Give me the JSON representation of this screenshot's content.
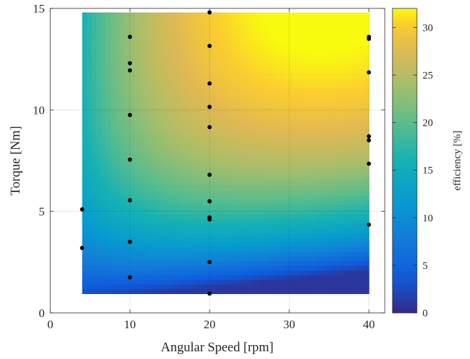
{
  "chart_data": {
    "type": "heatmap",
    "xlabel": "Angular Speed [rpm]",
    "ylabel": "Torque [Nm]",
    "colorbar_label": "efficiency [%]",
    "colormap": "parula",
    "xlim": [
      0,
      42
    ],
    "ylim": [
      0,
      15
    ],
    "x_ticks": [
      0,
      10,
      20,
      30,
      40
    ],
    "y_ticks": [
      0,
      5,
      10,
      15
    ],
    "colorbar_lim": [
      0,
      32
    ],
    "colorbar_ticks": [
      0,
      5,
      10,
      15,
      20,
      25,
      30
    ],
    "surface_extent": {
      "x": [
        4,
        40
      ],
      "y": [
        0.95,
        14.8
      ]
    },
    "peak_efficiency_location": {
      "x": 28,
      "y": 13.5,
      "value": 32
    },
    "grid": true,
    "points": [
      {
        "x": 4,
        "y": 5.1
      },
      {
        "x": 4,
        "y": 3.2
      },
      {
        "x": 10,
        "y": 13.6
      },
      {
        "x": 10,
        "y": 12.3
      },
      {
        "x": 10,
        "y": 11.95
      },
      {
        "x": 10,
        "y": 9.75
      },
      {
        "x": 10,
        "y": 7.55
      },
      {
        "x": 10,
        "y": 5.55
      },
      {
        "x": 10,
        "y": 3.5
      },
      {
        "x": 10,
        "y": 1.75
      },
      {
        "x": 20,
        "y": 14.8
      },
      {
        "x": 20,
        "y": 13.15
      },
      {
        "x": 20,
        "y": 11.3
      },
      {
        "x": 20,
        "y": 10.15
      },
      {
        "x": 20,
        "y": 9.15
      },
      {
        "x": 20,
        "y": 6.8
      },
      {
        "x": 20,
        "y": 5.5
      },
      {
        "x": 20,
        "y": 4.7
      },
      {
        "x": 20,
        "y": 4.6
      },
      {
        "x": 20,
        "y": 2.5
      },
      {
        "x": 20,
        "y": 0.95
      },
      {
        "x": 40,
        "y": 13.6
      },
      {
        "x": 40,
        "y": 13.5
      },
      {
        "x": 40,
        "y": 11.85
      },
      {
        "x": 40,
        "y": 8.7
      },
      {
        "x": 40,
        "y": 8.5
      },
      {
        "x": 40,
        "y": 7.35
      },
      {
        "x": 40,
        "y": 4.35
      }
    ]
  }
}
